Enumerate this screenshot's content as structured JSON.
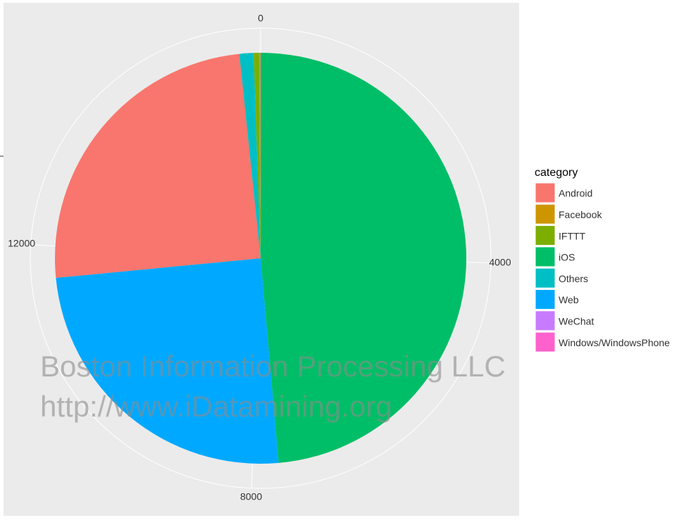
{
  "chart_data": {
    "type": "pie",
    "categories": [
      "Android",
      "Facebook",
      "IFTTT",
      "iOS",
      "Others",
      "Web",
      "WeChat",
      "Windows/WindowsPhone"
    ],
    "values": [
      3930,
      15,
      66,
      7680,
      176,
      3930,
      2,
      2
    ],
    "colors": [
      "#F8766D",
      "#CD9600",
      "#7CAE00",
      "#00BE67",
      "#00BFC4",
      "#00A9FF",
      "#C77CFF",
      "#FF61CC"
    ],
    "thetaticks": [
      0,
      4000,
      8000,
      12000
    ],
    "legend_title": "category",
    "legend_position": "right",
    "grid": true,
    "watermark": [
      "Boston Information Processing LLC",
      "http://www.iDatamining.org"
    ]
  }
}
